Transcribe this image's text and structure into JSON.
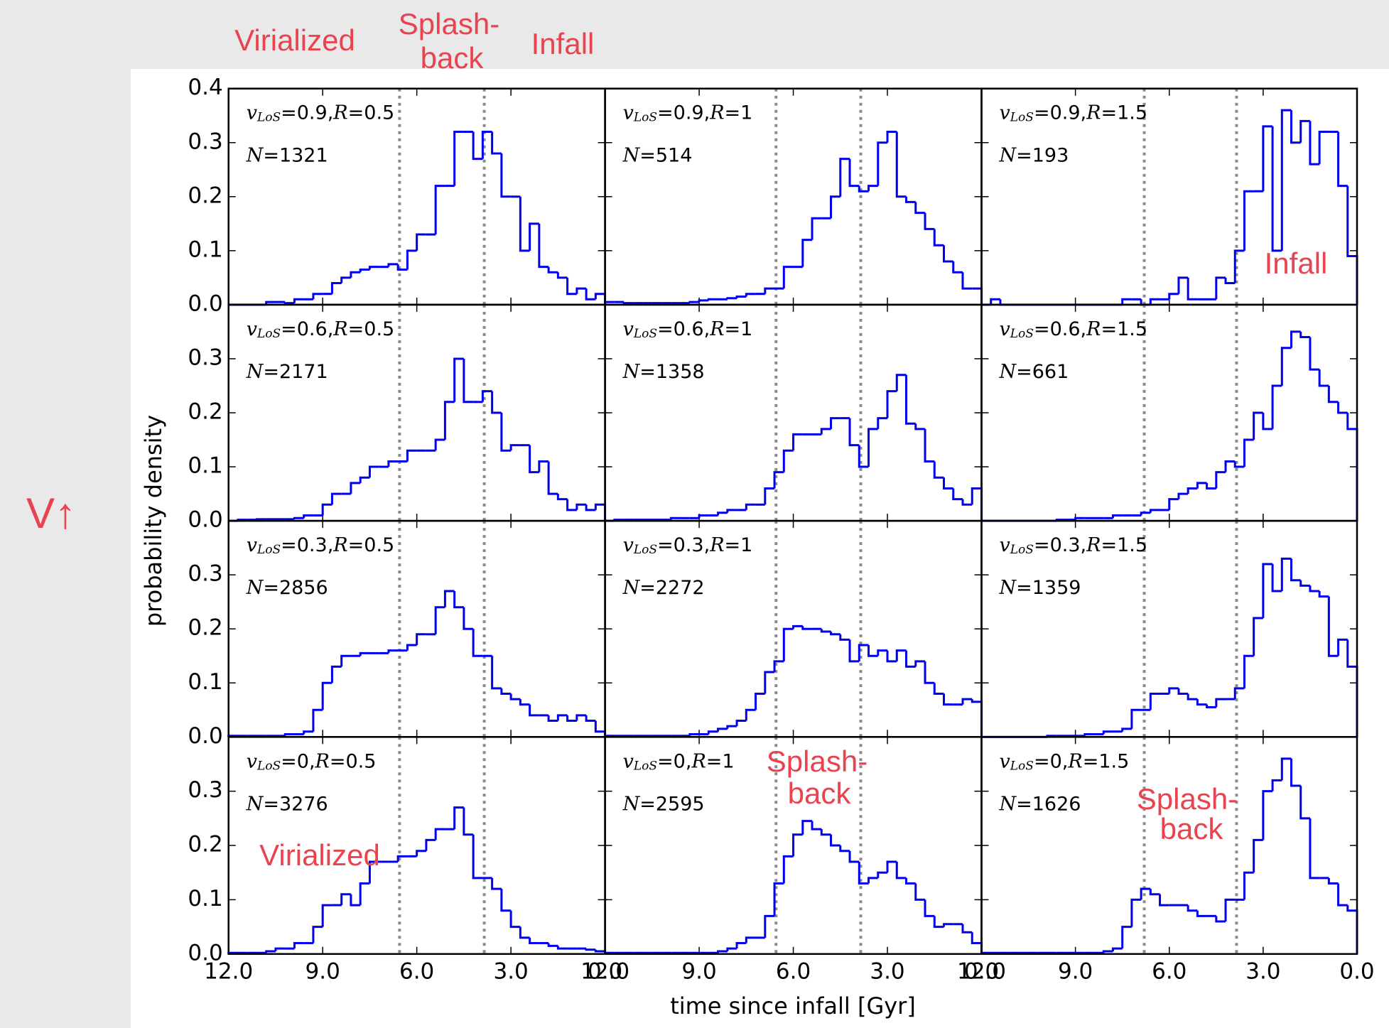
{
  "chart_data": {
    "type": "histogram",
    "xlabel": "time since infall [Gyr]",
    "ylabel": "probability density",
    "xlim": [
      12,
      0
    ],
    "ylim": [
      0,
      0.4
    ],
    "xticks": [
      {
        "value": 12,
        "label": "12.0"
      },
      {
        "value": 9,
        "label": "9.0"
      },
      {
        "value": 6,
        "label": "6.0"
      },
      {
        "value": 3,
        "label": "3.0"
      },
      {
        "value": 0,
        "label": "0.0"
      }
    ],
    "yticks": [
      {
        "value": 0,
        "label": "0.0"
      },
      0.1,
      0.2,
      0.3,
      0.4
    ],
    "bins": [
      12,
      11.7,
      11.4,
      11.1,
      10.8,
      10.5,
      10.2,
      9.9,
      9.6,
      9.3,
      9,
      8.7,
      8.4,
      8.1,
      7.8,
      7.5,
      7.2,
      6.9,
      6.6,
      6.3,
      6,
      5.7,
      5.4,
      5.1,
      4.8,
      4.5,
      4.2,
      3.9,
      3.6,
      3.3,
      3,
      2.7,
      2.4,
      2.1,
      1.8,
      1.5,
      1.2,
      0.9,
      0.6,
      0.3,
      0
    ],
    "color": "#0000ee",
    "divider_color": "#8a8a8a",
    "annotation_color": "#e8434f",
    "label_parts": {
      "v": "v",
      "v_sub": "LoS",
      "R": "R",
      "N": "N",
      "equals": "=",
      "separator": ","
    },
    "panels": [
      {
        "v": 0.9,
        "R": 0.5,
        "N": 1321,
        "dividers": [
          6.55,
          3.85
        ],
        "values": [
          0,
          0,
          0,
          0,
          0.005,
          0.005,
          0.003,
          0.01,
          0.01,
          0.02,
          0.02,
          0.04,
          0.05,
          0.06,
          0.065,
          0.07,
          0.07,
          0.075,
          0.065,
          0.1,
          0.13,
          0.13,
          0.22,
          0.22,
          0.32,
          0.32,
          0.27,
          0.32,
          0.28,
          0.2,
          0.2,
          0.1,
          0.15,
          0.07,
          0.06,
          0.05,
          0.02,
          0.03,
          0.01,
          0.02
        ]
      },
      {
        "v": 0.9,
        "R": 1,
        "N": 514,
        "dividers": [
          6.55,
          3.85
        ],
        "values": [
          0.005,
          0.005,
          0.003,
          0.003,
          0.003,
          0.003,
          0.003,
          0.003,
          0.003,
          0.005,
          0.008,
          0.01,
          0.01,
          0.012,
          0.015,
          0.02,
          0.02,
          0.03,
          0.03,
          0.07,
          0.07,
          0.12,
          0.16,
          0.16,
          0.2,
          0.27,
          0.22,
          0.21,
          0.22,
          0.3,
          0.32,
          0.2,
          0.19,
          0.17,
          0.14,
          0.11,
          0.08,
          0.06,
          0.03,
          0.03
        ]
      },
      {
        "v": 0.9,
        "R": 1.5,
        "N": 193,
        "dividers": [
          6.8,
          3.85
        ],
        "values": [
          0,
          0.01,
          0,
          0,
          0,
          0,
          0,
          0,
          0,
          0,
          0,
          0,
          0,
          0,
          0,
          0.01,
          0.01,
          0,
          0.01,
          0.01,
          0.02,
          0.05,
          0.01,
          0.01,
          0.01,
          0.05,
          0.04,
          0.1,
          0.21,
          0.21,
          0.33,
          0.1,
          0.36,
          0.3,
          0.34,
          0.26,
          0.32,
          0.32,
          0.22,
          0.09
        ]
      },
      {
        "v": 0.6,
        "R": 0.5,
        "N": 2171,
        "dividers": [
          6.55,
          3.85
        ],
        "values": [
          0,
          0.002,
          0.002,
          0.003,
          0.003,
          0.003,
          0.003,
          0.005,
          0.01,
          0.01,
          0.03,
          0.05,
          0.05,
          0.07,
          0.08,
          0.1,
          0.1,
          0.11,
          0.11,
          0.13,
          0.13,
          0.13,
          0.15,
          0.22,
          0.3,
          0.22,
          0.22,
          0.24,
          0.2,
          0.13,
          0.14,
          0.14,
          0.09,
          0.11,
          0.05,
          0.04,
          0.02,
          0.03,
          0.02,
          0.03
        ]
      },
      {
        "v": 0.6,
        "R": 1,
        "N": 1358,
        "dividers": [
          6.55,
          3.85
        ],
        "values": [
          0,
          0.002,
          0.002,
          0.002,
          0.002,
          0.002,
          0.002,
          0.005,
          0.005,
          0.005,
          0.01,
          0.01,
          0.015,
          0.02,
          0.02,
          0.03,
          0.03,
          0.06,
          0.09,
          0.13,
          0.16,
          0.16,
          0.16,
          0.17,
          0.19,
          0.19,
          0.14,
          0.1,
          0.17,
          0.19,
          0.24,
          0.27,
          0.18,
          0.17,
          0.11,
          0.08,
          0.06,
          0.04,
          0.03,
          0.06
        ]
      },
      {
        "v": 0.6,
        "R": 1.5,
        "N": 661,
        "dividers": [
          6.8,
          3.85
        ],
        "values": [
          0,
          0,
          0,
          0,
          0,
          0,
          0,
          0,
          0.002,
          0.002,
          0.005,
          0.005,
          0.005,
          0.005,
          0.01,
          0.01,
          0.01,
          0.015,
          0.02,
          0.02,
          0.04,
          0.05,
          0.06,
          0.07,
          0.06,
          0.09,
          0.11,
          0.1,
          0.15,
          0.2,
          0.17,
          0.25,
          0.32,
          0.35,
          0.34,
          0.28,
          0.25,
          0.22,
          0.2,
          0.17
        ]
      },
      {
        "v": 0.3,
        "R": 0.5,
        "N": 2856,
        "dividers": [
          6.55,
          3.85
        ],
        "values": [
          0.002,
          0.002,
          0.002,
          0.002,
          0.002,
          0.002,
          0.005,
          0.005,
          0.01,
          0.05,
          0.1,
          0.13,
          0.15,
          0.15,
          0.155,
          0.155,
          0.155,
          0.16,
          0.16,
          0.17,
          0.19,
          0.19,
          0.24,
          0.27,
          0.24,
          0.2,
          0.15,
          0.15,
          0.09,
          0.08,
          0.07,
          0.06,
          0.04,
          0.04,
          0.03,
          0.04,
          0.03,
          0.04,
          0.03,
          0.01
        ]
      },
      {
        "v": 0.3,
        "R": 1,
        "N": 2272,
        "dividers": [
          6.55,
          3.85
        ],
        "values": [
          0.002,
          0.002,
          0.002,
          0.002,
          0.002,
          0.002,
          0.002,
          0.002,
          0.002,
          0.005,
          0.005,
          0.01,
          0.015,
          0.02,
          0.03,
          0.05,
          0.08,
          0.12,
          0.14,
          0.2,
          0.205,
          0.2,
          0.2,
          0.195,
          0.19,
          0.18,
          0.14,
          0.17,
          0.15,
          0.16,
          0.14,
          0.16,
          0.13,
          0.14,
          0.1,
          0.08,
          0.06,
          0.06,
          0.07,
          0.065
        ]
      },
      {
        "v": 0.3,
        "R": 1.5,
        "N": 1359,
        "dividers": [
          6.8,
          3.85
        ],
        "values": [
          0,
          0,
          0,
          0,
          0,
          0,
          0,
          0.002,
          0.002,
          0.002,
          0.002,
          0.005,
          0.005,
          0.01,
          0.01,
          0.015,
          0.05,
          0.05,
          0.08,
          0.08,
          0.09,
          0.08,
          0.07,
          0.06,
          0.055,
          0.07,
          0.07,
          0.09,
          0.15,
          0.22,
          0.32,
          0.27,
          0.33,
          0.29,
          0.28,
          0.27,
          0.26,
          0.15,
          0.18,
          0.13
        ]
      },
      {
        "v": 0,
        "R": 0.5,
        "N": 3276,
        "dividers": [
          6.55,
          3.85
        ],
        "values": [
          0.002,
          0.002,
          0.002,
          0.002,
          0.005,
          0.01,
          0.01,
          0.02,
          0.02,
          0.05,
          0.09,
          0.09,
          0.11,
          0.09,
          0.13,
          0.17,
          0.17,
          0.17,
          0.18,
          0.18,
          0.19,
          0.21,
          0.23,
          0.23,
          0.27,
          0.22,
          0.14,
          0.14,
          0.12,
          0.08,
          0.05,
          0.03,
          0.02,
          0.02,
          0.015,
          0.01,
          0.01,
          0.01,
          0.008,
          0.005
        ]
      },
      {
        "v": 0,
        "R": 1,
        "N": 2595,
        "dividers": [
          6.55,
          3.85
        ],
        "values": [
          0.002,
          0.002,
          0.002,
          0.002,
          0.002,
          0.002,
          0.002,
          0.002,
          0.002,
          0.002,
          0.002,
          0.002,
          0.005,
          0.01,
          0.02,
          0.03,
          0.03,
          0.07,
          0.13,
          0.18,
          0.22,
          0.245,
          0.23,
          0.22,
          0.2,
          0.19,
          0.17,
          0.13,
          0.14,
          0.15,
          0.17,
          0.14,
          0.13,
          0.1,
          0.07,
          0.05,
          0.055,
          0.055,
          0.04,
          0.02
        ]
      },
      {
        "v": 0,
        "R": 1.5,
        "N": 1626,
        "dividers": [
          6.8,
          3.85
        ],
        "values": [
          0.002,
          0.002,
          0.002,
          0.002,
          0.002,
          0.002,
          0.002,
          0.002,
          0.002,
          0.002,
          0.002,
          0.002,
          0.002,
          0.005,
          0.01,
          0.05,
          0.1,
          0.12,
          0.11,
          0.09,
          0.09,
          0.09,
          0.08,
          0.07,
          0.07,
          0.06,
          0.1,
          0.1,
          0.15,
          0.21,
          0.3,
          0.32,
          0.36,
          0.31,
          0.25,
          0.14,
          0.14,
          0.13,
          0.09,
          0.08
        ]
      }
    ],
    "annotations": [
      "Virialized",
      "Splash-",
      "back",
      "Infall",
      "Infall",
      "Virialized",
      "Splash-",
      "back",
      "Splash-",
      "back",
      "V↑"
    ]
  }
}
